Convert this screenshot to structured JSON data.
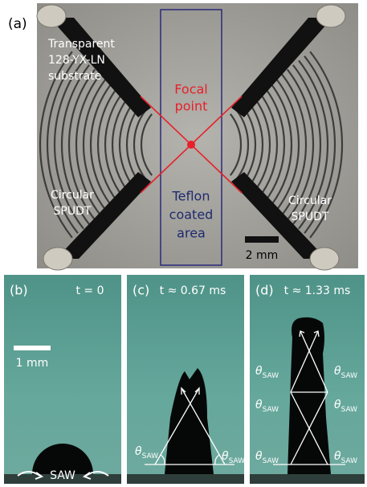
{
  "panel_a": {
    "label": "(a)",
    "substrate_label": [
      "Transparent",
      "128-YX-LN",
      "substrate"
    ],
    "focal_label": [
      "Focal",
      "point"
    ],
    "left_transducer_label": [
      "Circular",
      "SPUDT"
    ],
    "right_transducer_label": [
      "Circular",
      "SPUDT"
    ],
    "coating_label": [
      "Teflon",
      "coated",
      "area"
    ],
    "scale_bar": "2 mm"
  },
  "panel_b": {
    "label": "(b)",
    "time": "t = 0",
    "scale_bar": "1 mm",
    "wave_label": "SAW"
  },
  "panel_c": {
    "label": "(c)",
    "time": "t ≈ 0.67 ms",
    "angle_labels": [
      {
        "symbol": "θ",
        "subscript": "SAW"
      },
      {
        "symbol": "θ",
        "subscript": "SAW"
      }
    ]
  },
  "panel_d": {
    "label": "(d)",
    "time": "t ≈ 1.33 ms",
    "angle_labels": [
      {
        "symbol": "θ",
        "subscript": "SAW"
      },
      {
        "symbol": "θ",
        "subscript": "SAW"
      },
      {
        "symbol": "θ",
        "subscript": "SAW"
      },
      {
        "symbol": "θ",
        "subscript": "SAW"
      },
      {
        "symbol": "θ",
        "subscript": "SAW"
      },
      {
        "symbol": "θ",
        "subscript": "SAW"
      }
    ]
  }
}
